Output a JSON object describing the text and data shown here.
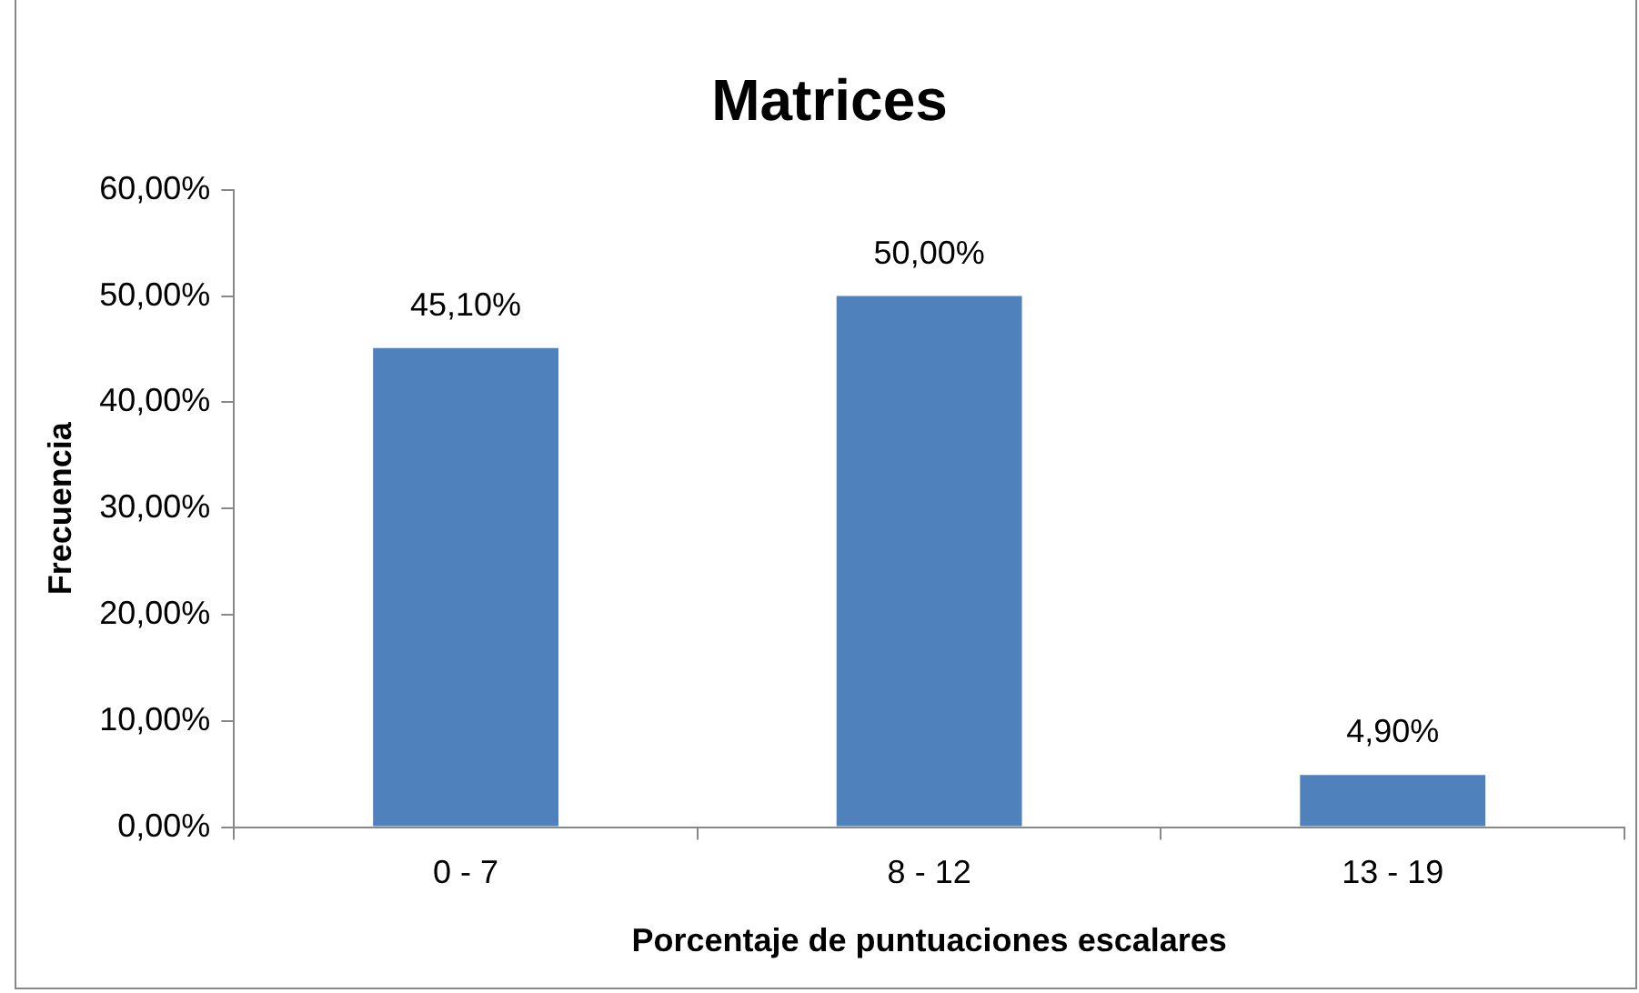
{
  "chart_data": {
    "type": "bar",
    "title": "Matrices",
    "xlabel": "Porcentaje de puntuaciones escalares",
    "ylabel": "Frecuencia",
    "categories": [
      "0 - 7",
      "8 - 12",
      "13 - 19"
    ],
    "values": [
      45.1,
      50,
      4.9
    ],
    "color": "#4f81bd",
    "value_labels": [
      "45,10%",
      "50,00%",
      "4,90%"
    ],
    "ylim": [
      0,
      60
    ],
    "yticks": [
      {
        "value": 0,
        "label": "0,00%"
      },
      {
        "value": 10,
        "label": "10,00%"
      },
      {
        "value": 20,
        "label": "20,00%"
      },
      {
        "value": 30,
        "label": "30,00%"
      },
      {
        "value": 40,
        "label": "40,00%"
      },
      {
        "value": 50,
        "label": "50,00%"
      },
      {
        "value": 60,
        "label": "60,00%"
      }
    ],
    "grid": false,
    "legend": false
  }
}
